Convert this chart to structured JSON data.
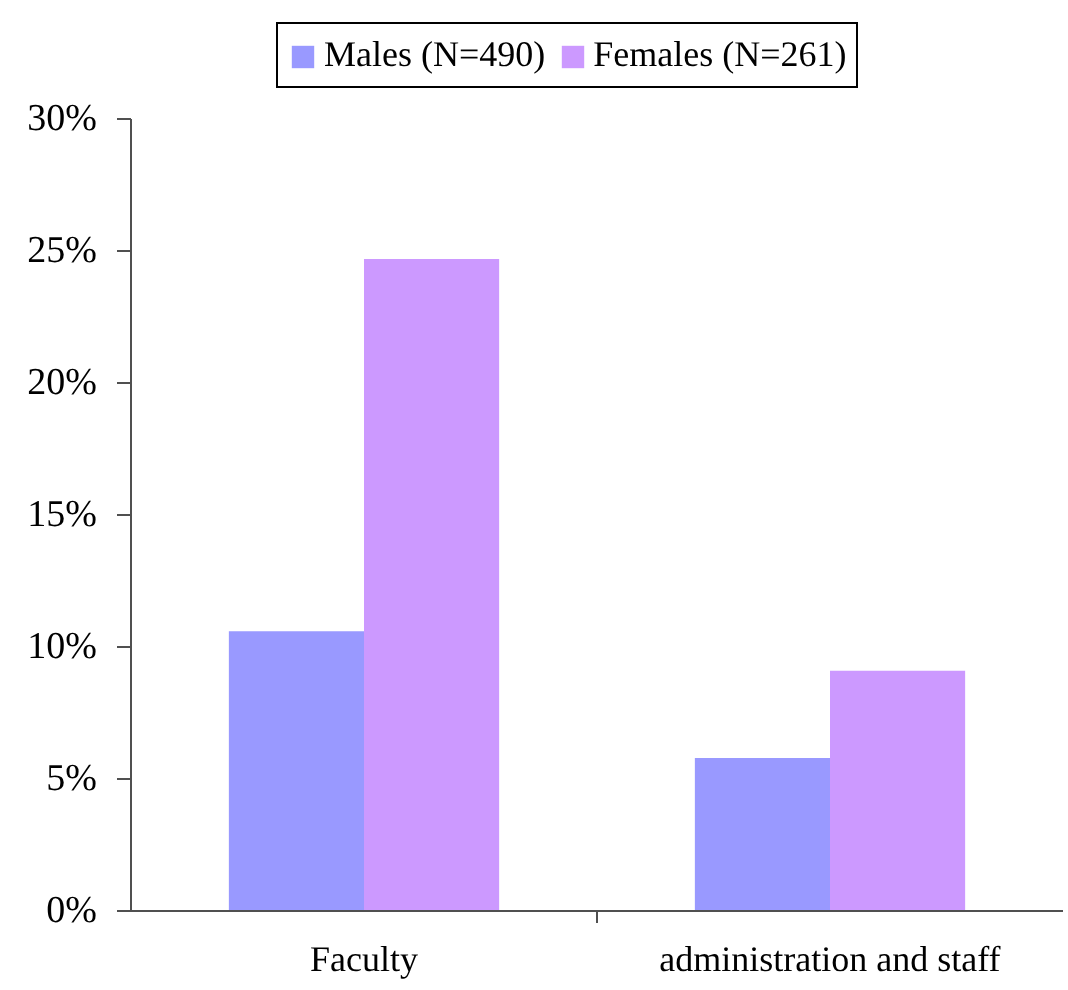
{
  "chart_data": {
    "type": "bar",
    "categories": [
      "Faculty",
      "administration and staff"
    ],
    "series": [
      {
        "name": "Males (N=490)",
        "color": "#9999ff",
        "values": [
          10.6,
          5.8
        ]
      },
      {
        "name": "Females (N=261)",
        "color": "#cc99ff",
        "values": [
          24.7,
          9.1
        ]
      }
    ],
    "ylim": [
      0,
      30
    ],
    "yticks": [
      {
        "value": 0,
        "label": "0%"
      },
      {
        "value": 5,
        "label": "5%"
      },
      {
        "value": 10,
        "label": "10%"
      },
      {
        "value": 15,
        "label": "15%"
      },
      {
        "value": 20,
        "label": "20%"
      },
      {
        "value": 25,
        "label": "25%"
      },
      {
        "value": 30,
        "label": "30%"
      }
    ],
    "legend": "top",
    "grid": false
  }
}
